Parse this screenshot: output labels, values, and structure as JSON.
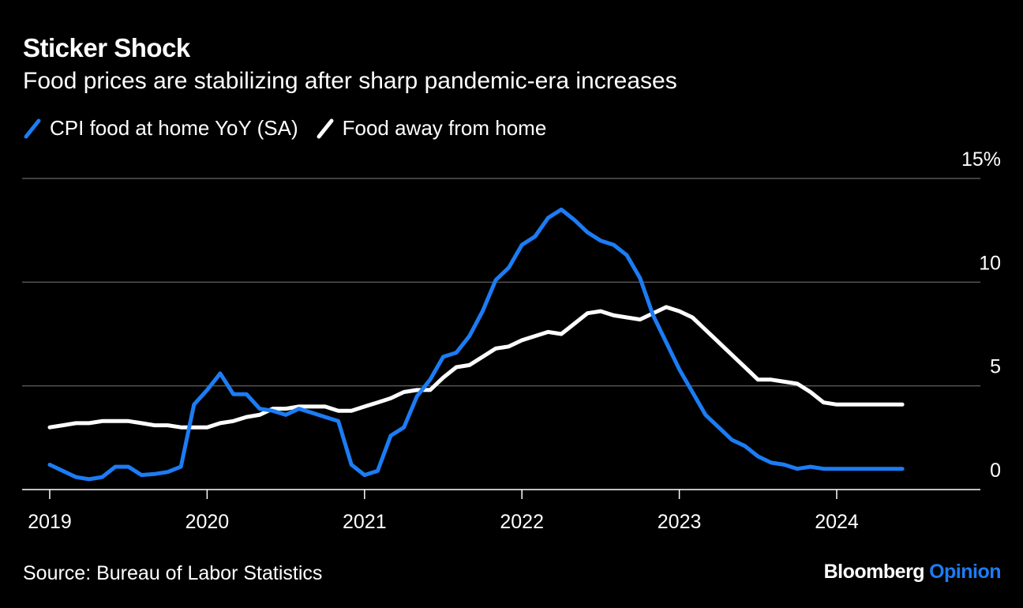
{
  "title": "Sticker Shock",
  "subtitle": "Food prices are stabilizing after sharp pandemic-era increases",
  "source": "Source: Bureau of Labor Statistics",
  "brand": {
    "name": "Bloomberg",
    "suffix": "Opinion"
  },
  "colors": {
    "background": "#000000",
    "food_at_home": "#1c7cf4",
    "food_away": "#ffffff",
    "grid": "#555555",
    "brand_accent": "#1c7cf4"
  },
  "chart_data": {
    "type": "line",
    "title": "Sticker Shock",
    "subtitle": "Food prices are stabilizing after sharp pandemic-era increases",
    "y_axis_side": "right",
    "ylim": [
      0,
      15
    ],
    "y_ticks": [
      {
        "value": 0,
        "label": "0"
      },
      {
        "value": 5,
        "label": "5"
      },
      {
        "value": 10,
        "label": "10"
      },
      {
        "value": 15,
        "label": "15%"
      }
    ],
    "x_ticks": [
      "2019",
      "2020",
      "2021",
      "2022",
      "2023",
      "2024"
    ],
    "x_range": [
      "2019-01",
      "2024-12"
    ],
    "grid": true,
    "legend_position": "top-left",
    "x": [
      "2019-01",
      "2019-02",
      "2019-03",
      "2019-04",
      "2019-05",
      "2019-06",
      "2019-07",
      "2019-08",
      "2019-09",
      "2019-10",
      "2019-11",
      "2019-12",
      "2020-01",
      "2020-02",
      "2020-03",
      "2020-04",
      "2020-05",
      "2020-06",
      "2020-07",
      "2020-08",
      "2020-09",
      "2020-10",
      "2020-11",
      "2020-12",
      "2021-01",
      "2021-02",
      "2021-03",
      "2021-04",
      "2021-05",
      "2021-06",
      "2021-07",
      "2021-08",
      "2021-09",
      "2021-10",
      "2021-11",
      "2021-12",
      "2022-01",
      "2022-02",
      "2022-03",
      "2022-04",
      "2022-05",
      "2022-06",
      "2022-07",
      "2022-08",
      "2022-09",
      "2022-10",
      "2022-11",
      "2022-12",
      "2023-01",
      "2023-02",
      "2023-03",
      "2023-04",
      "2023-05",
      "2023-06",
      "2023-07",
      "2023-08",
      "2023-09",
      "2023-10",
      "2023-11",
      "2023-12",
      "2024-01",
      "2024-02",
      "2024-03",
      "2024-04",
      "2024-05",
      "2024-06"
    ],
    "series": [
      {
        "name": "CPI food at home YoY (SA)",
        "color": "#1c7cf4",
        "values": [
          1.2,
          0.9,
          0.6,
          0.5,
          0.6,
          1.1,
          1.1,
          0.7,
          0.75,
          0.85,
          1.1,
          4.1,
          4.8,
          5.6,
          4.6,
          4.6,
          3.9,
          3.8,
          3.6,
          3.9,
          3.7,
          3.5,
          3.3,
          1.2,
          0.7,
          0.9,
          2.6,
          3.0,
          4.5,
          5.3,
          6.4,
          6.6,
          7.4,
          8.6,
          10.1,
          10.7,
          11.8,
          12.2,
          13.1,
          13.5,
          13.0,
          12.4,
          12.0,
          11.8,
          11.3,
          10.2,
          8.4,
          7.1,
          5.8,
          4.7,
          3.6,
          3.0,
          2.4,
          2.1,
          1.6,
          1.3,
          1.2,
          1.0,
          1.1,
          1.0,
          1.0,
          1.0,
          1.0,
          1.0,
          1.0,
          1.0
        ]
      },
      {
        "name": "Food away from home",
        "color": "#ffffff",
        "values": [
          3.0,
          3.1,
          3.2,
          3.2,
          3.3,
          3.3,
          3.3,
          3.2,
          3.1,
          3.1,
          3.0,
          3.0,
          3.0,
          3.2,
          3.3,
          3.5,
          3.6,
          3.9,
          3.9,
          4.0,
          4.0,
          4.0,
          3.8,
          3.8,
          4.0,
          4.2,
          4.4,
          4.7,
          4.8,
          4.8,
          5.4,
          5.9,
          6.0,
          6.4,
          6.8,
          6.9,
          7.2,
          7.4,
          7.6,
          7.5,
          8.0,
          8.5,
          8.6,
          8.4,
          8.3,
          8.2,
          8.5,
          8.8,
          8.6,
          8.3,
          7.7,
          7.1,
          6.5,
          5.9,
          5.3,
          5.3,
          5.2,
          5.1,
          4.7,
          4.2,
          4.1,
          4.1,
          4.1,
          4.1,
          4.1,
          4.1
        ]
      }
    ]
  },
  "legend": [
    {
      "label": "CPI food at home YoY (SA)",
      "color": "#1c7cf4"
    },
    {
      "label": "Food away from home",
      "color": "#ffffff"
    }
  ]
}
